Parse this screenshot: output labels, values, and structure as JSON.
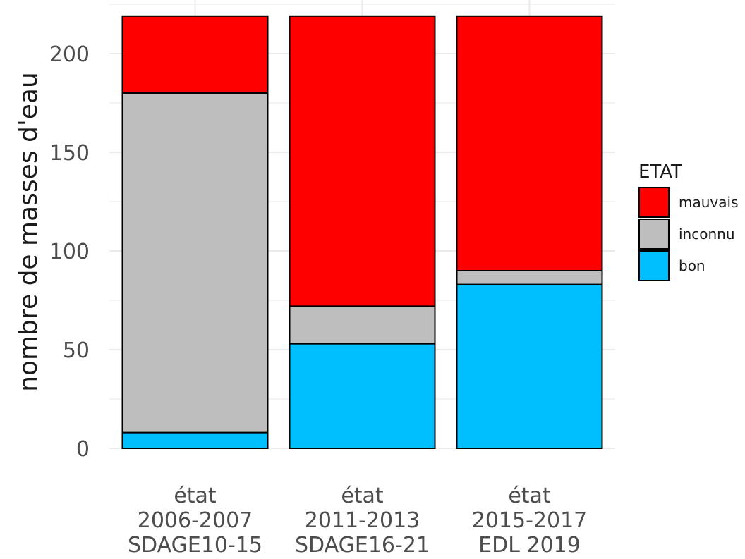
{
  "chart_data": {
    "type": "bar",
    "stacked": true,
    "categories": [
      [
        "état",
        "2006-2007",
        "SDAGE10-15"
      ],
      [
        "état",
        "2011-2013",
        "SDAGE16-21"
      ],
      [
        "état",
        "2015-2017",
        "EDL 2019"
      ]
    ],
    "series": [
      {
        "name": "bon",
        "color": "#00BFFF",
        "values": [
          8,
          53,
          83
        ]
      },
      {
        "name": "inconnu",
        "color": "#BEBEBE",
        "values": [
          172,
          19,
          7
        ]
      },
      {
        "name": "mauvais",
        "color": "#FF0000",
        "values": [
          39,
          147,
          129
        ]
      }
    ],
    "title": "",
    "xlabel": "",
    "ylabel": "nombre de masses d'eau",
    "ylim": [
      0,
      219
    ],
    "yticks": [
      0,
      50,
      100,
      150,
      200
    ],
    "grid": true,
    "legend": {
      "title": "ETAT",
      "position": "right",
      "order": [
        "mauvais",
        "inconnu",
        "bon"
      ]
    }
  }
}
